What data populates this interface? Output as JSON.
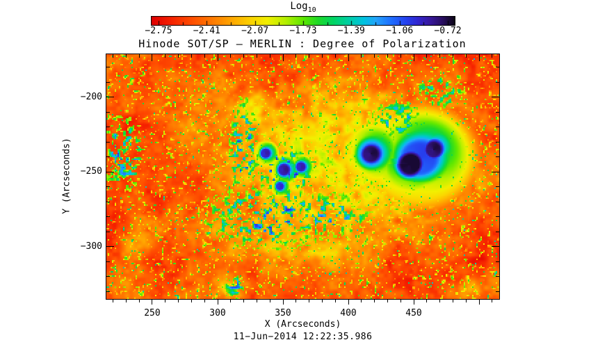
{
  "page": {
    "background": "#ffffff",
    "text_color": "#000000"
  },
  "colorbar": {
    "title_main": "Log",
    "title_sub": "10",
    "tick_labels": [
      "−2.75",
      "−2.41",
      "−2.07",
      "−1.73",
      "−1.39",
      "−1.06",
      "−0.72"
    ]
  },
  "plot": {
    "x_tick_labels": [
      "250",
      "300",
      "350",
      "400",
      "450"
    ],
    "y_tick_labels": [
      "−200",
      "−250",
      "−300"
    ]
  },
  "chart_data": {
    "type": "heatmap",
    "title": "Hinode SOT/SP — MERLIN : Degree of Polarization",
    "xlabel": "X (Arcseconds)",
    "ylabel": "Y (Arcseconds)",
    "timestamp": "11−Jun−2014 12:22:35.986",
    "colorbar": {
      "label": "Log10",
      "min": -2.75,
      "max": -0.72,
      "ticks": [
        -2.75,
        -2.41,
        -2.07,
        -1.73,
        -1.39,
        -1.06,
        -0.72
      ]
    },
    "xlim": [
      214.9,
      515.4
    ],
    "ylim": [
      -334.9,
      -171.2
    ],
    "x_ticks": [
      250,
      300,
      350,
      400,
      450
    ],
    "y_ticks": [
      -200,
      -250,
      -300
    ],
    "x_minor_step": 10,
    "y_minor_step": 10,
    "grid": false,
    "colormap_stops": [
      [
        0.0,
        "#e10000"
      ],
      [
        0.06,
        "#f52000"
      ],
      [
        0.13,
        "#ff4d00"
      ],
      [
        0.2,
        "#ff7b00"
      ],
      [
        0.27,
        "#ffac00"
      ],
      [
        0.33,
        "#fbd500"
      ],
      [
        0.38,
        "#f2ef00"
      ],
      [
        0.44,
        "#b8f000"
      ],
      [
        0.5,
        "#5fe800"
      ],
      [
        0.55,
        "#1fd929"
      ],
      [
        0.6,
        "#00d565"
      ],
      [
        0.65,
        "#00cfa4"
      ],
      [
        0.7,
        "#00c3e0"
      ],
      [
        0.74,
        "#24a5fb"
      ],
      [
        0.79,
        "#1f70ff"
      ],
      [
        0.84,
        "#2542f0"
      ],
      [
        0.88,
        "#3226cf"
      ],
      [
        0.92,
        "#38189c"
      ],
      [
        0.96,
        "#2a0f62"
      ],
      [
        1.0,
        "#0e0618"
      ]
    ],
    "features": {
      "description": "Active-region polarization map: dark blue/purple sunspot umbrae and pores (high polarization) embedded in a mottled green plage, over a speckled red/orange quiet-sun background (low polarization).",
      "sunspot_cores": [
        {
          "x": 454.0,
          "y": -241.0,
          "sx": 45,
          "sy": 36,
          "peak": 0.88,
          "kind": "main-penumbra"
        },
        {
          "x": 447.0,
          "y": -245.0,
          "sx": 25,
          "sy": 22,
          "peak": 1.06,
          "kind": "main-umbra-west"
        },
        {
          "x": 465.0,
          "y": -235.0,
          "sx": 19,
          "sy": 17,
          "peak": 1.02,
          "kind": "main-umbra-east"
        },
        {
          "x": 417.0,
          "y": -238.0,
          "sx": 27,
          "sy": 24,
          "peak": 0.84,
          "kind": "second-penumbra"
        },
        {
          "x": 417.0,
          "y": -238.0,
          "sx": 20,
          "sy": 17,
          "peak": 1.02,
          "kind": "second-umbra"
        },
        {
          "x": 336.5,
          "y": -237.5,
          "sx": 11,
          "sy": 9.5,
          "peak": 0.95,
          "kind": "pore"
        },
        {
          "x": 350.5,
          "y": -248.5,
          "sx": 13,
          "sy": 11.5,
          "peak": 0.97,
          "kind": "pore"
        },
        {
          "x": 363.5,
          "y": -246.5,
          "sx": 11,
          "sy": 9.5,
          "peak": 0.95,
          "kind": "pore"
        },
        {
          "x": 347.5,
          "y": -259.5,
          "sx": 9,
          "sy": 8,
          "peak": 0.92,
          "kind": "pore"
        }
      ],
      "plage_zones": [
        {
          "x": 393,
          "y": -241,
          "sx": 97,
          "sy": 54,
          "s": 0.62,
          "t": 0.52
        },
        {
          "x": 350,
          "y": -299,
          "sx": 55,
          "sy": 20,
          "s": 0.32,
          "t": 0.48
        },
        {
          "x": 328,
          "y": -207,
          "sx": 14,
          "sy": 9,
          "s": 0.55,
          "t": 0.46
        },
        {
          "x": 307,
          "y": -327,
          "sx": 15,
          "sy": 9,
          "s": 0.55,
          "t": 0.48
        },
        {
          "x": 491,
          "y": -330,
          "sx": 13,
          "sy": 7,
          "s": 0.5,
          "t": 0.46
        },
        {
          "x": 243,
          "y": -290,
          "sx": 18,
          "sy": 14,
          "s": 0.3,
          "t": 0.44
        },
        {
          "x": 232,
          "y": -205,
          "sx": 12,
          "sy": 8,
          "s": 0.3,
          "t": 0.42
        }
      ],
      "speckle_zones": [
        {
          "x": 341,
          "y": -280,
          "sx": 45,
          "sy": 18,
          "s": 0.85
        },
        {
          "x": 320,
          "y": -234,
          "sx": 9,
          "sy": 29,
          "s": 0.9
        },
        {
          "x": 228,
          "y": -238,
          "sx": 14,
          "sy": 21,
          "s": 0.8
        },
        {
          "x": 350,
          "y": -249,
          "sx": 20,
          "sy": 15,
          "s": 1.0
        },
        {
          "x": 386,
          "y": -279,
          "sx": 25,
          "sy": 12,
          "s": 0.8
        },
        {
          "x": 437,
          "y": -215,
          "sx": 16,
          "sy": 11,
          "s": 0.7
        },
        {
          "x": 313,
          "y": -326,
          "sx": 6,
          "sy": 6,
          "s": 0.9
        },
        {
          "x": 470,
          "y": -196,
          "sx": 18,
          "sy": 10,
          "s": 0.5
        }
      ]
    }
  }
}
